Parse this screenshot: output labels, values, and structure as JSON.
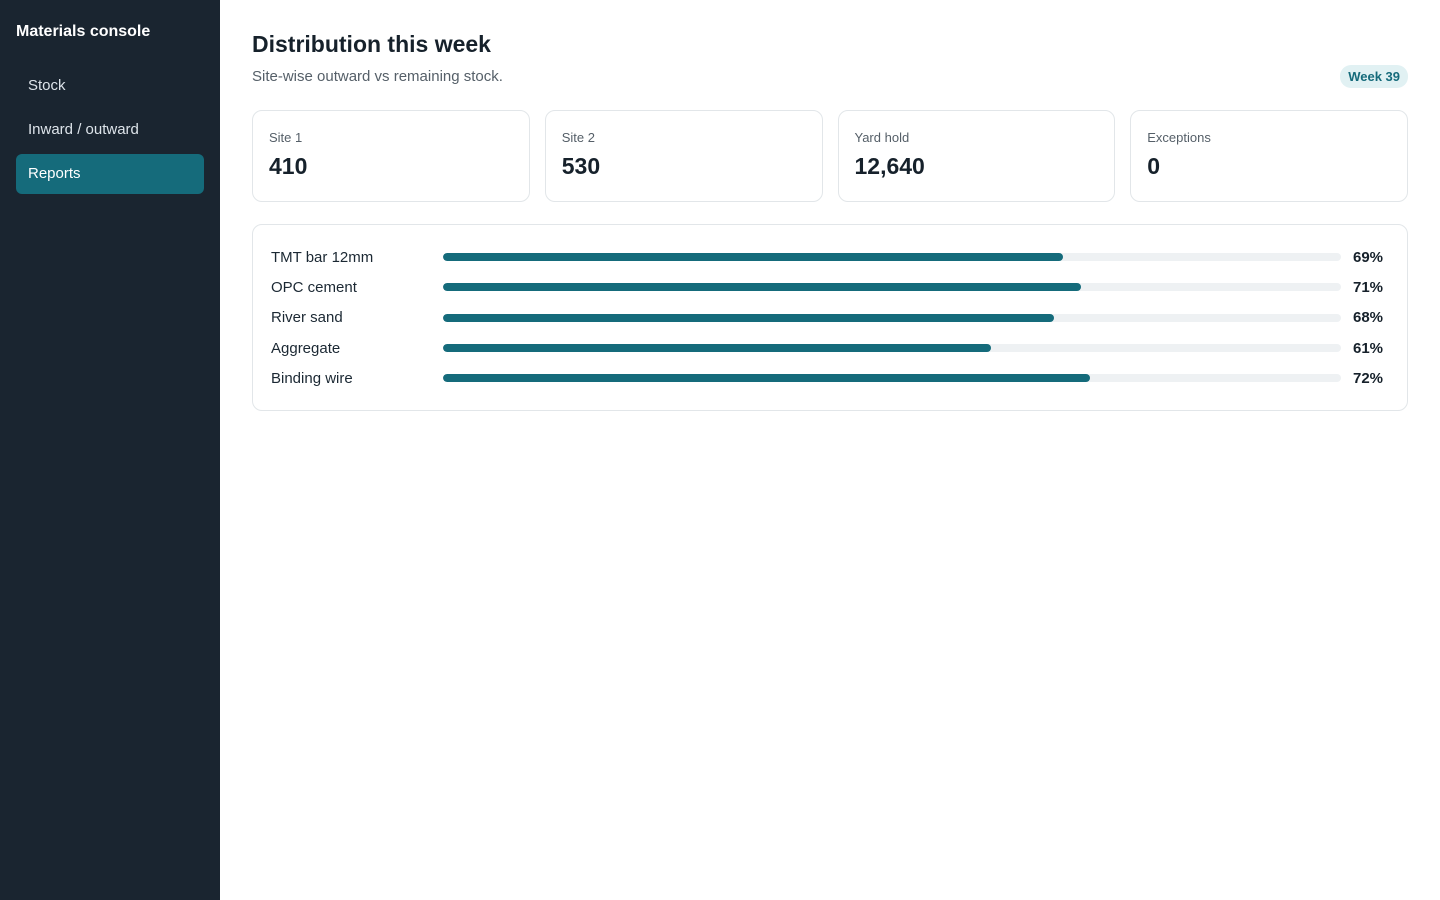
{
  "sidebar": {
    "brand": "Materials console",
    "items": [
      {
        "label": "Stock",
        "active": false
      },
      {
        "label": "Inward / outward",
        "active": false
      },
      {
        "label": "Reports",
        "active": true
      }
    ]
  },
  "header": {
    "title": "Distribution this week",
    "subtitle": "Site-wise outward vs remaining stock.",
    "badge": "Week 39"
  },
  "stats": [
    {
      "label": "Site 1",
      "value": "410"
    },
    {
      "label": "Site 2",
      "value": "530"
    },
    {
      "label": "Yard hold",
      "value": "12,640"
    },
    {
      "label": "Exceptions",
      "value": "0"
    }
  ],
  "bars": [
    {
      "label": "TMT bar 12mm",
      "percent": 69,
      "percent_label": "69%"
    },
    {
      "label": "OPC cement",
      "percent": 71,
      "percent_label": "71%"
    },
    {
      "label": "River sand",
      "percent": 68,
      "percent_label": "68%"
    },
    {
      "label": "Aggregate",
      "percent": 61,
      "percent_label": "61%"
    },
    {
      "label": "Binding wire",
      "percent": 72,
      "percent_label": "72%"
    }
  ],
  "colors": {
    "sidebar_bg": "#1a2530",
    "accent": "#156b7b",
    "track": "#eef1f3"
  }
}
